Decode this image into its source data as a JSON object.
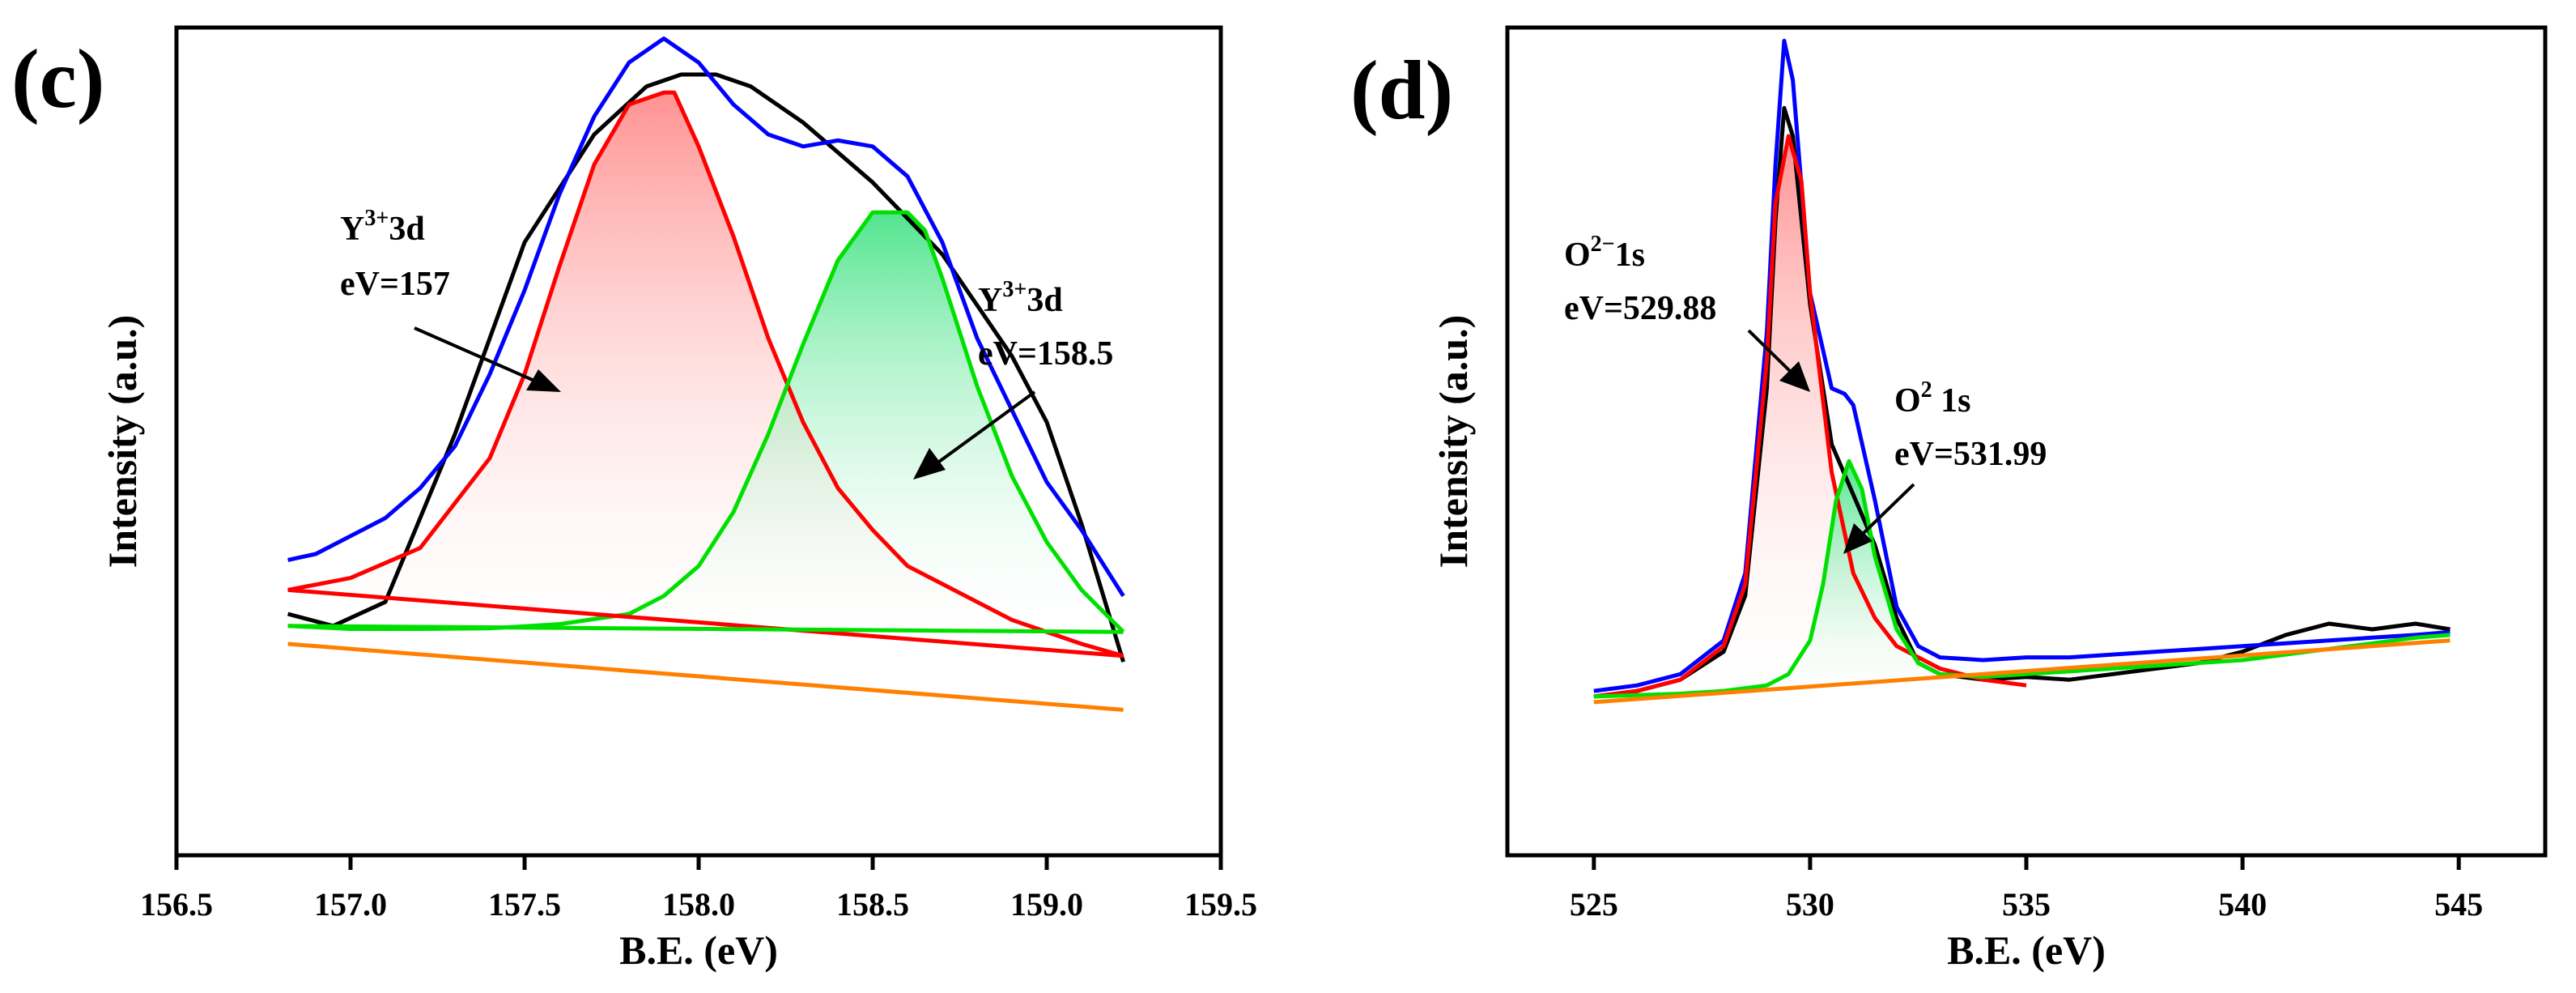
{
  "chart_data": [
    {
      "panel": "(c)",
      "type": "line",
      "xlabel": "B.E. (eV)",
      "ylabel": "Intensity (a.u.)",
      "xlim": [
        156.5,
        159.5
      ],
      "x_ticks": [
        "156.5",
        "157.0",
        "157.5",
        "158.0",
        "158.5",
        "159.0",
        "159.5"
      ],
      "annotations": [
        {
          "sup": "3+",
          "line1_pre": "Y",
          "line1_post": "3d",
          "line2": "eV=157"
        },
        {
          "sup": "3+",
          "line1_pre": "Y",
          "line1_post": "3d",
          "line2": "eV=158.5"
        }
      ],
      "series": [
        {
          "color": "#000000",
          "x": [
            156.82,
            156.95,
            157.1,
            157.3,
            157.5,
            157.7,
            157.85,
            157.95,
            158.05,
            158.15,
            158.3,
            158.5,
            158.7,
            158.9,
            159.0,
            159.1,
            159.22
          ],
          "y": [
            0.1,
            0.08,
            0.12,
            0.4,
            0.72,
            0.9,
            0.98,
            1.0,
            1.0,
            0.98,
            0.92,
            0.82,
            0.7,
            0.53,
            0.42,
            0.25,
            0.02
          ]
        },
        {
          "color": "#0000ff",
          "x": [
            156.82,
            156.9,
            157.0,
            157.1,
            157.2,
            157.3,
            157.4,
            157.5,
            157.6,
            157.7,
            157.8,
            157.9,
            158.0,
            158.1,
            158.2,
            158.3,
            158.4,
            158.5,
            158.6,
            158.7,
            158.8,
            158.9,
            159.0,
            159.1,
            159.22
          ],
          "y": [
            0.19,
            0.2,
            0.23,
            0.26,
            0.31,
            0.38,
            0.5,
            0.64,
            0.8,
            0.93,
            1.02,
            1.06,
            1.02,
            0.95,
            0.9,
            0.88,
            0.89,
            0.88,
            0.83,
            0.72,
            0.56,
            0.44,
            0.32,
            0.24,
            0.13
          ]
        },
        {
          "color": "#ff0000",
          "x": [
            156.82,
            157.0,
            157.2,
            157.4,
            157.5,
            157.6,
            157.7,
            157.8,
            157.9,
            157.93,
            158.0,
            158.1,
            158.2,
            158.3,
            158.4,
            158.5,
            158.6,
            158.7,
            158.8,
            158.9,
            159.0,
            159.1,
            159.22
          ],
          "y": [
            0.14,
            0.16,
            0.21,
            0.36,
            0.5,
            0.68,
            0.85,
            0.95,
            0.97,
            0.97,
            0.88,
            0.73,
            0.56,
            0.42,
            0.31,
            0.24,
            0.18,
            0.15,
            0.12,
            0.09,
            0.07,
            0.05,
            0.03
          ]
        },
        {
          "color": "#00e000",
          "x": [
            156.82,
            157.0,
            157.2,
            157.4,
            157.6,
            157.8,
            157.9,
            158.0,
            158.1,
            158.2,
            158.3,
            158.4,
            158.5,
            158.6,
            158.65,
            158.7,
            158.8,
            158.9,
            159.0,
            159.1,
            159.22
          ],
          "y": [
            0.08,
            0.075,
            0.075,
            0.076,
            0.083,
            0.1,
            0.13,
            0.18,
            0.27,
            0.4,
            0.55,
            0.69,
            0.77,
            0.77,
            0.74,
            0.66,
            0.48,
            0.33,
            0.22,
            0.14,
            0.07
          ]
        },
        {
          "color": "#ff8000",
          "x": [
            156.82,
            159.22
          ],
          "y": [
            0.05,
            -0.06
          ]
        },
        {
          "color": "#ff0000",
          "x": [
            156.82,
            159.22
          ],
          "y": [
            0.14,
            0.03
          ]
        },
        {
          "color": "#00e000",
          "x": [
            156.82,
            159.22
          ],
          "y": [
            0.08,
            0.07
          ]
        }
      ]
    },
    {
      "panel": "(d)",
      "type": "line",
      "xlabel": "B.E. (eV)",
      "ylabel": "Intensity (a.u.)",
      "xlim": [
        523,
        547
      ],
      "x_ticks": [
        "525",
        "530",
        "535",
        "540",
        "545"
      ],
      "annotations": [
        {
          "sup": "2−",
          "line1_pre": "O",
          "line1_post": "1s",
          "line2": "eV=529.88"
        },
        {
          "sup": "2",
          "line1_pre": "O",
          "line1_post": " 1s",
          "line2": "eV=531.99"
        }
      ],
      "series": [
        {
          "color": "#000000",
          "x": [
            525,
            526,
            527,
            528,
            528.5,
            529,
            529.2,
            529.4,
            529.6,
            530,
            530.5,
            531,
            531.5,
            532,
            532.5,
            533,
            534,
            535,
            536,
            537,
            538,
            539,
            540,
            541,
            542,
            543,
            544,
            544.8
          ],
          "y": [
            0.0,
            0.01,
            0.03,
            0.08,
            0.18,
            0.55,
            0.85,
            1.05,
            1.0,
            0.7,
            0.45,
            0.36,
            0.27,
            0.14,
            0.06,
            0.04,
            0.03,
            0.035,
            0.03,
            0.04,
            0.05,
            0.06,
            0.08,
            0.11,
            0.13,
            0.12,
            0.13,
            0.12
          ]
        },
        {
          "color": "#0000ff",
          "x": [
            525,
            526,
            527,
            528,
            528.5,
            529,
            529.2,
            529.4,
            529.6,
            530,
            530.5,
            530.8,
            531,
            531.5,
            532,
            532.5,
            533,
            534,
            535,
            536,
            537,
            538,
            539,
            540,
            541,
            542,
            543,
            544,
            544.8
          ],
          "y": [
            0.01,
            0.02,
            0.04,
            0.1,
            0.22,
            0.65,
            0.95,
            1.17,
            1.1,
            0.72,
            0.55,
            0.54,
            0.52,
            0.35,
            0.16,
            0.09,
            0.07,
            0.065,
            0.07,
            0.07,
            0.075,
            0.08,
            0.085,
            0.09,
            0.095,
            0.1,
            0.105,
            0.11,
            0.115
          ]
        },
        {
          "color": "#ff0000",
          "x": [
            525,
            526,
            527,
            528,
            528.5,
            529,
            529.2,
            529.5,
            529.8,
            530,
            530.5,
            531,
            531.5,
            532,
            533,
            534,
            535
          ],
          "y": [
            0.0,
            0.01,
            0.03,
            0.09,
            0.2,
            0.6,
            0.88,
            1.0,
            0.92,
            0.72,
            0.4,
            0.22,
            0.14,
            0.09,
            0.05,
            0.03,
            0.02
          ]
        },
        {
          "color": "#00e000",
          "x": [
            525,
            527,
            528,
            529,
            529.5,
            530,
            530.3,
            530.6,
            530.9,
            531.2,
            531.5,
            532,
            532.5,
            533,
            534,
            535,
            536,
            537,
            538,
            539,
            540,
            541,
            542,
            543,
            544,
            544.8
          ],
          "y": [
            0.0,
            0.005,
            0.01,
            0.02,
            0.04,
            0.1,
            0.2,
            0.35,
            0.42,
            0.37,
            0.25,
            0.12,
            0.06,
            0.04,
            0.035,
            0.04,
            0.045,
            0.05,
            0.055,
            0.06,
            0.065,
            0.075,
            0.085,
            0.095,
            0.105,
            0.11
          ]
        },
        {
          "color": "#ff8000",
          "x": [
            525,
            544.8
          ],
          "y": [
            -0.01,
            0.1
          ]
        }
      ]
    }
  ]
}
